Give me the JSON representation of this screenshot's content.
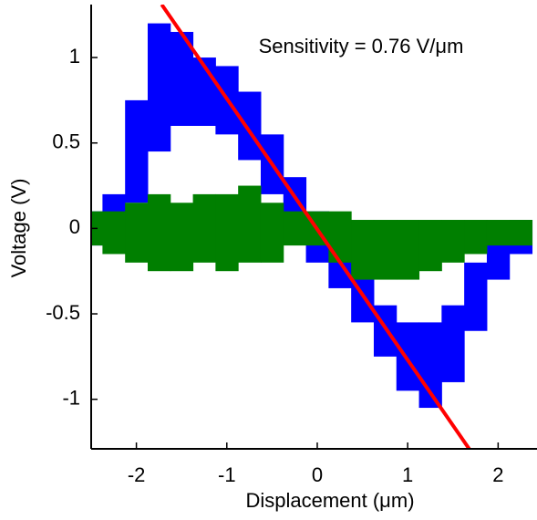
{
  "chart_data": {
    "type": "band",
    "annotation": "Sensitivity = 0.76 V/μm",
    "x_label": "Displacement (μm)",
    "y_label": "Voltage (V)",
    "xlim": [
      -2.5,
      2.43
    ],
    "ylim": [
      -1.29,
      1.31
    ],
    "xticks": [
      -2,
      -1,
      0,
      1,
      2
    ],
    "yticks": [
      -1,
      -0.5,
      0,
      0.5,
      1
    ],
    "x": [
      -2.5,
      -2.25,
      -2,
      -1.75,
      -1.5,
      -1.25,
      -1,
      -0.75,
      -0.5,
      -0.25,
      0,
      0.25,
      0.5,
      0.75,
      1,
      1.25,
      1.5,
      1.75,
      2,
      2.25
    ],
    "series": [
      {
        "color": "#0000ff",
        "lower": [
          -0.1,
          0,
          0.15,
          0.45,
          0.6,
          0.6,
          0.55,
          0.4,
          0.2,
          0,
          -0.2,
          -0.35,
          -0.55,
          -0.75,
          -0.95,
          -1.05,
          -0.9,
          -0.6,
          -0.3,
          -0.15
        ],
        "upper": [
          0.1,
          0.2,
          0.75,
          1.2,
          1.15,
          1.0,
          0.95,
          0.8,
          0.55,
          0.3,
          0.1,
          -0.05,
          -0.2,
          -0.45,
          -0.55,
          -0.55,
          -0.45,
          -0.2,
          -0.05,
          0.05
        ]
      },
      {
        "color": "#007f00",
        "lower": [
          -0.1,
          -0.15,
          -0.2,
          -0.25,
          -0.25,
          -0.2,
          -0.25,
          -0.2,
          -0.2,
          -0.1,
          -0.1,
          -0.2,
          -0.3,
          -0.3,
          -0.3,
          -0.25,
          -0.2,
          -0.15,
          -0.1,
          -0.1
        ],
        "upper": [
          0.1,
          0.1,
          0.15,
          0.2,
          0.15,
          0.2,
          0.2,
          0.25,
          0.15,
          0.1,
          0.1,
          0.1,
          0.05,
          0.05,
          0.05,
          0.05,
          0.05,
          0.05,
          0.05,
          0.05
        ]
      }
    ],
    "fit": {
      "color": "#ff0000",
      "x": [
        -1.72,
        1.68
      ],
      "values": [
        1.31,
        -1.29
      ]
    }
  }
}
